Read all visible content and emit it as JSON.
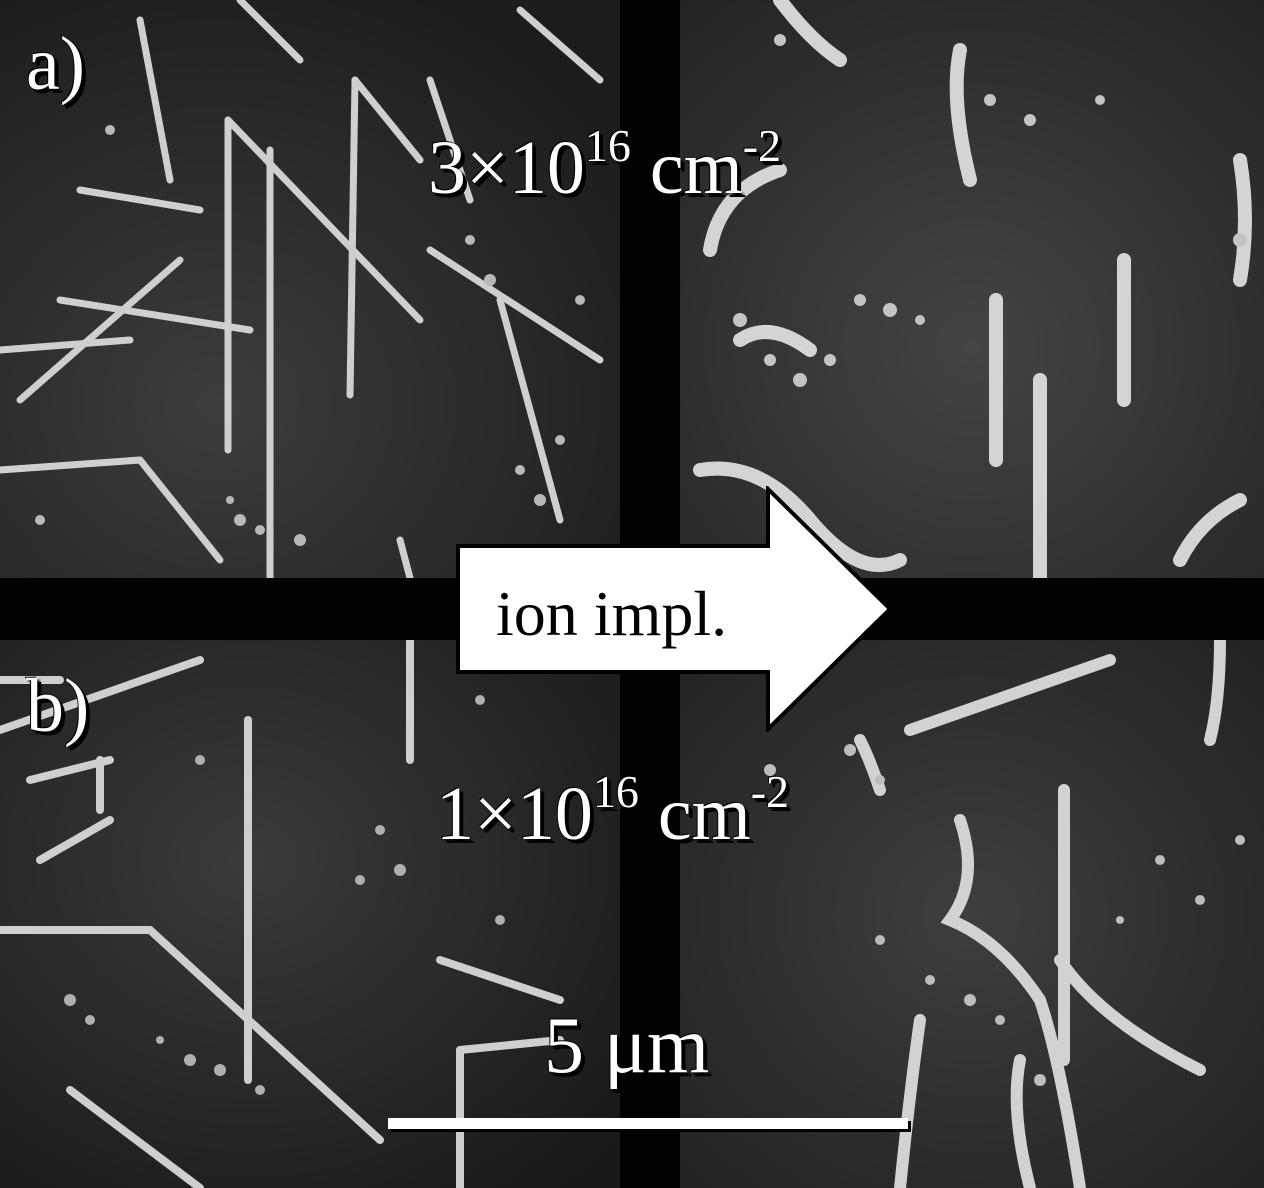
{
  "panels": {
    "a": {
      "label": "a)",
      "dose": {
        "mantissa": "3",
        "exponent": "16",
        "unit": "cm",
        "unit_exponent": "-2"
      }
    },
    "b": {
      "label": "b)",
      "dose": {
        "mantissa": "1",
        "exponent": "16",
        "unit": "cm",
        "unit_exponent": "-2"
      }
    }
  },
  "arrow": {
    "label": "ion impl."
  },
  "scale_bar": {
    "label": "5 μm"
  },
  "colors": {
    "background": "#000000",
    "text": "#ffffff",
    "arrow_fill": "#ffffff",
    "arrow_stroke": "#000000"
  }
}
